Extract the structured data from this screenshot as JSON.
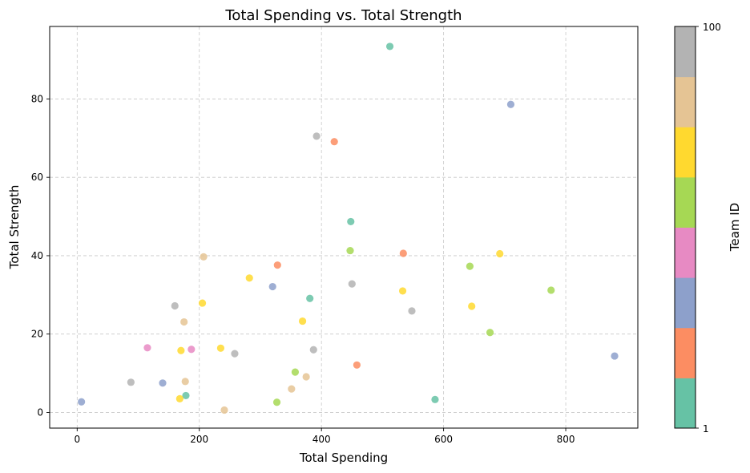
{
  "chart_data": {
    "type": "scatter",
    "title": "Total Spending vs. Total Strength",
    "xlabel": "Total Spending",
    "ylabel": "Total Strength",
    "xlim": [
      -45,
      918
    ],
    "ylim": [
      -4,
      98.5
    ],
    "xticks": [
      0,
      200,
      400,
      600,
      800
    ],
    "yticks": [
      0,
      20,
      40,
      60,
      80
    ],
    "grid": true,
    "colorbar": {
      "label": "Team ID",
      "min": 1,
      "max": 100,
      "tick_labels": [
        "1",
        "100"
      ],
      "colormap": "Set2",
      "colors": [
        "#66c2a5",
        "#fc8d62",
        "#8da0cb",
        "#e78ac3",
        "#a6d854",
        "#ffd92f",
        "#e5c494",
        "#b3b3b3"
      ]
    },
    "points": [
      {
        "x": 512,
        "y": 93.4,
        "color": "#66c2a5"
      },
      {
        "x": 710,
        "y": 78.6,
        "color": "#8da0cb"
      },
      {
        "x": 392,
        "y": 70.5,
        "color": "#b3b3b3"
      },
      {
        "x": 421,
        "y": 69.1,
        "color": "#fc8d62"
      },
      {
        "x": 448,
        "y": 48.7,
        "color": "#66c2a5"
      },
      {
        "x": 447,
        "y": 41.3,
        "color": "#a6d854"
      },
      {
        "x": 534,
        "y": 40.6,
        "color": "#fc8d62"
      },
      {
        "x": 692,
        "y": 40.5,
        "color": "#ffd92f"
      },
      {
        "x": 207,
        "y": 39.7,
        "color": "#e5c494"
      },
      {
        "x": 328,
        "y": 37.6,
        "color": "#fc8d62"
      },
      {
        "x": 643,
        "y": 37.3,
        "color": "#a6d854"
      },
      {
        "x": 282,
        "y": 34.3,
        "color": "#ffd92f"
      },
      {
        "x": 450,
        "y": 32.8,
        "color": "#b3b3b3"
      },
      {
        "x": 320,
        "y": 32.1,
        "color": "#8da0cb"
      },
      {
        "x": 776,
        "y": 31.2,
        "color": "#a6d854"
      },
      {
        "x": 533,
        "y": 31.0,
        "color": "#ffd92f"
      },
      {
        "x": 381,
        "y": 29.1,
        "color": "#66c2a5"
      },
      {
        "x": 205,
        "y": 27.9,
        "color": "#ffd92f"
      },
      {
        "x": 160,
        "y": 27.2,
        "color": "#b3b3b3"
      },
      {
        "x": 646,
        "y": 27.1,
        "color": "#ffd92f"
      },
      {
        "x": 548,
        "y": 25.9,
        "color": "#b3b3b3"
      },
      {
        "x": 369,
        "y": 23.3,
        "color": "#ffd92f"
      },
      {
        "x": 175,
        "y": 23.1,
        "color": "#e5c494"
      },
      {
        "x": 676,
        "y": 20.4,
        "color": "#a6d854"
      },
      {
        "x": 115,
        "y": 16.5,
        "color": "#e78ac3"
      },
      {
        "x": 235,
        "y": 16.4,
        "color": "#ffd92f"
      },
      {
        "x": 187,
        "y": 16.1,
        "color": "#e78ac3"
      },
      {
        "x": 387,
        "y": 16.0,
        "color": "#b3b3b3"
      },
      {
        "x": 170,
        "y": 15.8,
        "color": "#ffd92f"
      },
      {
        "x": 258,
        "y": 15.0,
        "color": "#b3b3b3"
      },
      {
        "x": 880,
        "y": 14.4,
        "color": "#8da0cb"
      },
      {
        "x": 458,
        "y": 12.1,
        "color": "#fc8d62"
      },
      {
        "x": 357,
        "y": 10.3,
        "color": "#a6d854"
      },
      {
        "x": 375,
        "y": 9.1,
        "color": "#e5c494"
      },
      {
        "x": 177,
        "y": 7.9,
        "color": "#e5c494"
      },
      {
        "x": 88,
        "y": 7.7,
        "color": "#b3b3b3"
      },
      {
        "x": 140,
        "y": 7.5,
        "color": "#8da0cb"
      },
      {
        "x": 351,
        "y": 6.0,
        "color": "#e5c494"
      },
      {
        "x": 178,
        "y": 4.3,
        "color": "#66c2a5"
      },
      {
        "x": 168,
        "y": 3.5,
        "color": "#ffd92f"
      },
      {
        "x": 586,
        "y": 3.3,
        "color": "#66c2a5"
      },
      {
        "x": 7,
        "y": 2.7,
        "color": "#8da0cb"
      },
      {
        "x": 327,
        "y": 2.6,
        "color": "#a6d854"
      },
      {
        "x": 241,
        "y": 0.6,
        "color": "#e5c494"
      }
    ]
  }
}
